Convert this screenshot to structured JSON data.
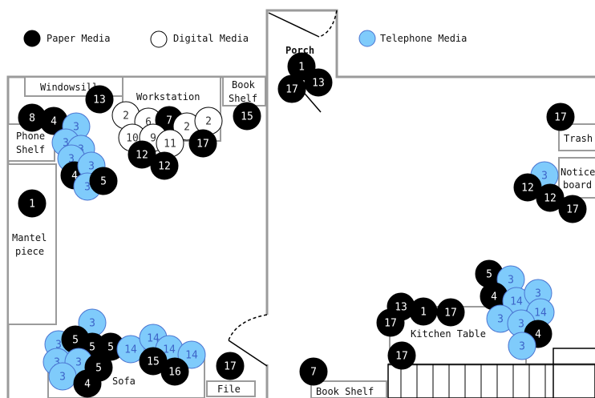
{
  "legend": [
    {
      "label": "Paper Media",
      "fill": "#000000",
      "stroke": "#000000"
    },
    {
      "label": "Digital Media",
      "fill": "#ffffff",
      "stroke": "#000000"
    },
    {
      "label": "Telephone Media",
      "fill": "#7fcbfb",
      "stroke": "#4a74d1"
    }
  ],
  "colors": {
    "paper": "#000000",
    "digital": "#ffffff",
    "telephone": "#7fcbfb",
    "telephone_border": "#4a74d1",
    "wall": "#9b9b9b"
  },
  "rooms": {
    "porch": "Porch",
    "windowsill": "Windowsill",
    "workstation": "Workstation",
    "book_shelf_top_1": "Book",
    "book_shelf_top_2": "Shelf",
    "phone_shelf_1": "Phone",
    "phone_shelf_2": "Shelf",
    "mantel_1": "Mantel",
    "mantel_2": "piece",
    "sofa": "Sofa",
    "file": "File",
    "book_shelf_bottom": "Book Shelf",
    "kitchen_table": "Kitchen Table",
    "trash": "Trash",
    "notice_1": "Notice",
    "notice_2": "board"
  },
  "markers": [
    {
      "type": "paper",
      "label": "1"
    },
    {
      "type": "paper",
      "label": "17"
    },
    {
      "type": "paper",
      "label": "13"
    },
    {
      "type": "paper",
      "label": "13"
    },
    {
      "type": "paper",
      "label": "15"
    },
    {
      "type": "paper",
      "label": "8"
    },
    {
      "type": "paper",
      "label": "4"
    },
    {
      "type": "telephone",
      "label": "3"
    },
    {
      "type": "telephone",
      "label": "3"
    },
    {
      "type": "telephone",
      "label": "3"
    },
    {
      "type": "telephone",
      "label": "3"
    },
    {
      "type": "paper",
      "label": "4"
    },
    {
      "type": "telephone",
      "label": "3"
    },
    {
      "type": "telephone",
      "label": "3"
    },
    {
      "type": "paper",
      "label": "5"
    },
    {
      "type": "digital",
      "label": "2"
    },
    {
      "type": "digital",
      "label": "6"
    },
    {
      "type": "paper",
      "label": "7"
    },
    {
      "type": "digital",
      "label": "2"
    },
    {
      "type": "digital",
      "label": "2"
    },
    {
      "type": "digital",
      "label": "10"
    },
    {
      "type": "digital",
      "label": "9"
    },
    {
      "type": "digital",
      "label": "11"
    },
    {
      "type": "paper",
      "label": "17"
    },
    {
      "type": "paper",
      "label": "12"
    },
    {
      "type": "paper",
      "label": "12"
    },
    {
      "type": "paper",
      "label": "1"
    },
    {
      "type": "paper",
      "label": "17"
    },
    {
      "type": "telephone",
      "label": "3"
    },
    {
      "type": "paper",
      "label": "12"
    },
    {
      "type": "paper",
      "label": "12"
    },
    {
      "type": "paper",
      "label": "17"
    },
    {
      "type": "paper",
      "label": "5"
    },
    {
      "type": "telephone",
      "label": "3"
    },
    {
      "type": "paper",
      "label": "4"
    },
    {
      "type": "telephone",
      "label": "14"
    },
    {
      "type": "telephone",
      "label": "3"
    },
    {
      "type": "telephone",
      "label": "14"
    },
    {
      "type": "telephone",
      "label": "3"
    },
    {
      "type": "telephone",
      "label": "3"
    },
    {
      "type": "paper",
      "label": "4"
    },
    {
      "type": "telephone",
      "label": "3"
    },
    {
      "type": "paper",
      "label": "13"
    },
    {
      "type": "paper",
      "label": "1"
    },
    {
      "type": "paper",
      "label": "17"
    },
    {
      "type": "paper",
      "label": "17"
    },
    {
      "type": "paper",
      "label": "17"
    },
    {
      "type": "telephone",
      "label": "3"
    },
    {
      "type": "telephone",
      "label": "3"
    },
    {
      "type": "paper",
      "label": "5"
    },
    {
      "type": "paper",
      "label": "5"
    },
    {
      "type": "paper",
      "label": "5"
    },
    {
      "type": "telephone",
      "label": "3"
    },
    {
      "type": "telephone",
      "label": "3"
    },
    {
      "type": "telephone",
      "label": "3"
    },
    {
      "type": "paper",
      "label": "5"
    },
    {
      "type": "paper",
      "label": "4"
    },
    {
      "type": "telephone",
      "label": "14"
    },
    {
      "type": "telephone",
      "label": "14"
    },
    {
      "type": "telephone",
      "label": "14"
    },
    {
      "type": "telephone",
      "label": "14"
    },
    {
      "type": "paper",
      "label": "15"
    },
    {
      "type": "paper",
      "label": "16"
    },
    {
      "type": "paper",
      "label": "17"
    },
    {
      "type": "paper",
      "label": "7"
    }
  ]
}
